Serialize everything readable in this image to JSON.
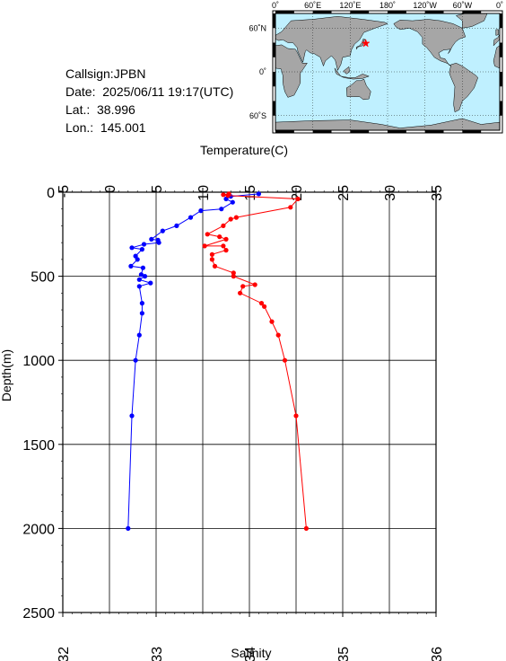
{
  "info": {
    "callsign": "Callsign:JPBN",
    "date": "Date:  2025/06/11 19:17(UTC)",
    "lat": "Lat.:  38.996",
    "lon": "Lon.:  145.001"
  },
  "map": {
    "lon_labels": [
      "0˚",
      "60˚E",
      "120˚E",
      "180˚",
      "120˚W",
      "60˚W",
      "0˚"
    ],
    "lat_labels": [
      "60˚N",
      "0˚",
      "60˚S"
    ],
    "ocean_color": "#bff0ff",
    "land_color": "#a6a6a6",
    "marker_color": "#ff0000",
    "marker": {
      "lon": 145.0,
      "lat": 39.0
    }
  },
  "chart_data": {
    "type": "line",
    "title": "",
    "top_axis": {
      "label": "Temperature(C)",
      "range": [
        -5,
        35
      ],
      "ticks": [
        "-5",
        "0",
        "5",
        "10",
        "15",
        "20",
        "25",
        "30",
        "35"
      ]
    },
    "bottom_axis": {
      "label": "Salinity",
      "range": [
        32,
        36
      ],
      "ticks": [
        "32",
        "33",
        "34",
        "35",
        "36"
      ]
    },
    "y_axis": {
      "label": "Depth(m)",
      "range": [
        0,
        2500
      ],
      "inverted": true,
      "ticks": [
        "0",
        "500",
        "1000",
        "1500",
        "2000",
        "2500"
      ]
    },
    "grid": true,
    "series": [
      {
        "quantity": "temperature",
        "axis": "top",
        "color": "#0000ff",
        "points": [
          [
            16.0,
            10
          ],
          [
            13.0,
            25
          ],
          [
            12.5,
            40
          ],
          [
            13.2,
            60
          ],
          [
            12.0,
            100
          ],
          [
            9.8,
            110
          ],
          [
            8.7,
            150
          ],
          [
            7.2,
            200
          ],
          [
            5.7,
            230
          ],
          [
            4.5,
            280
          ],
          [
            5.2,
            285
          ],
          [
            5.3,
            300
          ],
          [
            3.7,
            310
          ],
          [
            2.4,
            330
          ],
          [
            3.5,
            340
          ],
          [
            2.8,
            380
          ],
          [
            3.0,
            400
          ],
          [
            2.3,
            440
          ],
          [
            3.6,
            450
          ],
          [
            3.4,
            490
          ],
          [
            3.8,
            500
          ],
          [
            3.2,
            520
          ],
          [
            4.4,
            540
          ],
          [
            3.2,
            560
          ],
          [
            3.5,
            660
          ],
          [
            3.5,
            720
          ],
          [
            3.2,
            850
          ],
          [
            2.8,
            1000
          ],
          [
            2.4,
            1330
          ],
          [
            2.0,
            2000
          ]
        ]
      },
      {
        "quantity": "salinity",
        "axis": "bottom",
        "color": "#ff0000",
        "points": [
          [
            33.78,
            10
          ],
          [
            33.72,
            15
          ],
          [
            33.77,
            20
          ],
          [
            34.52,
            40
          ],
          [
            34.44,
            90
          ],
          [
            33.86,
            150
          ],
          [
            33.8,
            160
          ],
          [
            33.72,
            200
          ],
          [
            33.55,
            250
          ],
          [
            33.68,
            265
          ],
          [
            33.75,
            280
          ],
          [
            33.52,
            320
          ],
          [
            33.72,
            320
          ],
          [
            33.75,
            345
          ],
          [
            33.6,
            370
          ],
          [
            33.6,
            400
          ],
          [
            33.63,
            440
          ],
          [
            33.83,
            480
          ],
          [
            33.83,
            500
          ],
          [
            34.06,
            550
          ],
          [
            33.93,
            560
          ],
          [
            33.9,
            600
          ],
          [
            34.13,
            660
          ],
          [
            34.16,
            680
          ],
          [
            34.24,
            770
          ],
          [
            34.31,
            850
          ],
          [
            34.38,
            1000
          ],
          [
            34.5,
            1330
          ],
          [
            34.61,
            2000
          ]
        ]
      }
    ]
  }
}
